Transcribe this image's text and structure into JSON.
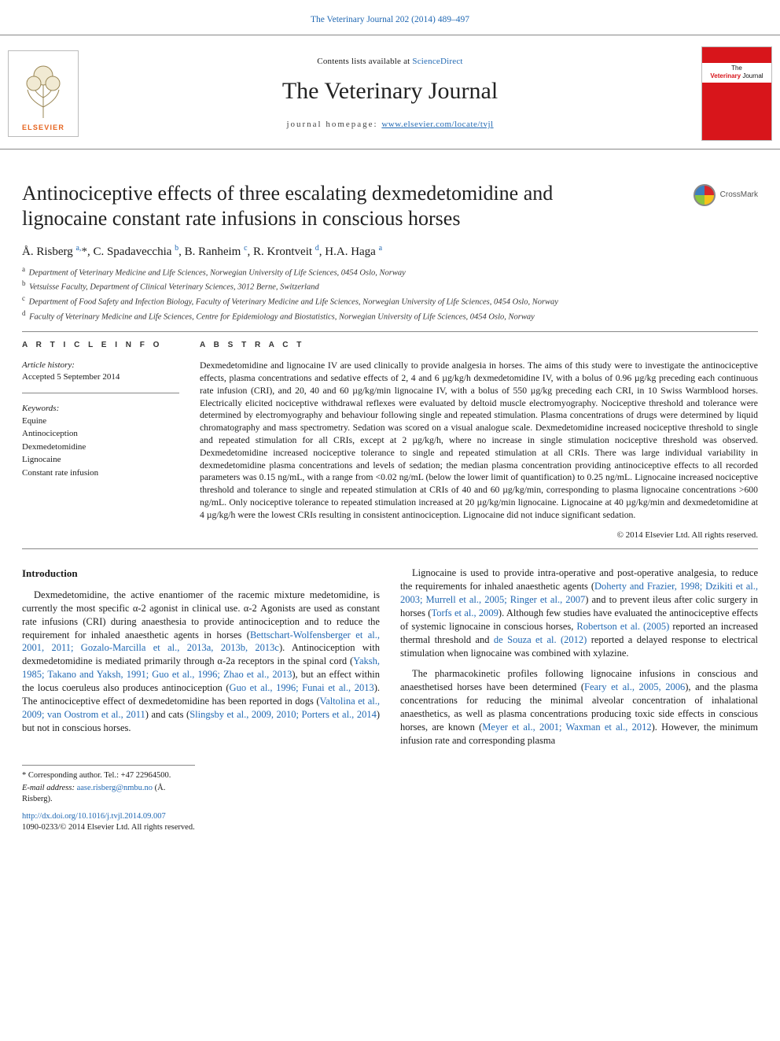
{
  "colors": {
    "link": "#2269b3",
    "text": "#1a1a1a",
    "rule": "#888888",
    "elsevier_orange": "#e6641f",
    "cover_red": "#d8151b",
    "background": "#ffffff"
  },
  "top_citation": {
    "text": "The Veterinary Journal 202 (2014) 489–497"
  },
  "masthead": {
    "contents_prefix": "Contents lists available at ",
    "contents_link": "ScienceDirect",
    "journal_title": "The Veterinary Journal",
    "homepage_prefix": "journal homepage: ",
    "homepage_link": "www.elsevier.com/locate/tvjl",
    "publisher_word": "ELSEVIER",
    "cover_text_1": "The",
    "cover_text_2": "Veterinary",
    "cover_text_3": "Journal"
  },
  "article": {
    "title": "Antinociceptive effects of three escalating dexmedetomidine and lignocaine constant rate infusions in conscious horses",
    "crossmark_label": "CrossMark",
    "authors_html": "Å. Risberg <sup>a,</sup><span class='star'>*</span>, C. Spadavecchia <sup>b</sup>, B. Ranheim <sup>c</sup>, R. Krontveit <sup>d</sup>, H.A. Haga <sup>a</sup>",
    "affiliations": {
      "a": "Department of Veterinary Medicine and Life Sciences, Norwegian University of Life Sciences, 0454 Oslo, Norway",
      "b": "Vetsuisse Faculty, Department of Clinical Veterinary Sciences, 3012 Berne, Switzerland",
      "c": "Department of Food Safety and Infection Biology, Faculty of Veterinary Medicine and Life Sciences, Norwegian University of Life Sciences, 0454 Oslo, Norway",
      "d": "Faculty of Veterinary Medicine and Life Sciences, Centre for Epidemiology and Biostatistics, Norwegian University of Life Sciences, 0454 Oslo, Norway"
    }
  },
  "article_info": {
    "heading": "A R T I C L E   I N F O",
    "history_label": "Article history:",
    "history_value": "Accepted 5 September 2014",
    "keywords_label": "Keywords:",
    "keywords": [
      "Equine",
      "Antinociception",
      "Dexmedetomidine",
      "Lignocaine",
      "Constant rate infusion"
    ]
  },
  "abstract": {
    "heading": "A B S T R A C T",
    "text": "Dexmedetomidine and lignocaine IV are used clinically to provide analgesia in horses. The aims of this study were to investigate the antinociceptive effects, plasma concentrations and sedative effects of 2, 4 and 6 µg/kg/h dexmedetomidine IV, with a bolus of 0.96 µg/kg preceding each continuous rate infusion (CRI), and 20, 40 and 60 µg/kg/min lignocaine IV, with a bolus of 550 µg/kg preceding each CRI, in 10 Swiss Warmblood horses. Electrically elicited nociceptive withdrawal reflexes were evaluated by deltoid muscle electromyography. Nociceptive threshold and tolerance were determined by electromyography and behaviour following single and repeated stimulation. Plasma concentrations of drugs were determined by liquid chromatography and mass spectrometry. Sedation was scored on a visual analogue scale. Dexmedetomidine increased nociceptive threshold to single and repeated stimulation for all CRIs, except at 2 µg/kg/h, where no increase in single stimulation nociceptive threshold was observed. Dexmedetomidine increased nociceptive tolerance to single and repeated stimulation at all CRIs. There was large individual variability in dexmedetomidine plasma concentrations and levels of sedation; the median plasma concentration providing antinociceptive effects to all recorded parameters was 0.15 ng/mL, with a range from <0.02 ng/mL (below the lower limit of quantification) to 0.25 ng/mL. Lignocaine increased nociceptive threshold and tolerance to single and repeated stimulation at CRIs of 40 and 60 µg/kg/min, corresponding to plasma lignocaine concentrations >600 ng/mL. Only nociceptive tolerance to repeated stimulation increased at 20 µg/kg/min lignocaine. Lignocaine at 40 µg/kg/min and dexmedetomidine at 4 µg/kg/h were the lowest CRIs resulting in consistent antinociception. Lignocaine did not induce significant sedation.",
    "copyright": "© 2014 Elsevier Ltd. All rights reserved."
  },
  "body": {
    "intro_heading": "Introduction",
    "p1_a": "Dexmedetomidine, the active enantiomer of the racemic mixture medetomidine, is currently the most specific α-2 agonist in clinical use. α-2 Agonists are used as constant rate infusions (CRI) during anaesthesia to provide antinociception and to reduce the requirement for inhaled anaesthetic agents in horses (",
    "p1_l1": "Bettschart-Wolfensberger et al., 2001, 2011; Gozalo-Marcilla et al., 2013a, 2013b, 2013c",
    "p1_b": "). Antinociception with dexmedetomidine is mediated primarily through α-2a receptors in the spinal cord (",
    "p1_l2": "Yaksh, 1985; Takano and Yaksh, 1991; Guo et al., 1996; Zhao et al., 2013",
    "p1_c": "), but an effect within the locus coeruleus also produces antinociception (",
    "p1_l3": "Guo et al., 1996; Funai et al., 2013",
    "p1_d": "). The antinociceptive effect of dexmedetomidine has been reported in dogs (",
    "p1_l4": "Valtolina et al., 2009;",
    "p1_l4b": "van Oostrom et al., 2011",
    "p1_e": ") and cats (",
    "p1_l5": "Slingsby et al., 2009, 2010; Porters et al., 2014",
    "p1_f": ") but not in conscious horses.",
    "p2_a": "Lignocaine is used to provide intra-operative and post-operative analgesia, to reduce the requirements for inhaled anaesthetic agents (",
    "p2_l1": "Doherty and Frazier, 1998; Dzikiti et al., 2003; Murrell et al., 2005; Ringer et al., 2007",
    "p2_b": ") and to prevent ileus after colic surgery in horses (",
    "p2_l2": "Torfs et al., 2009",
    "p2_c": "). Although few studies have evaluated the antinociceptive effects of systemic lignocaine in conscious horses, ",
    "p2_l3": "Robertson et al. (2005)",
    "p2_d": " reported an increased thermal threshold and ",
    "p2_l4": "de Souza et al. (2012)",
    "p2_e": " reported a delayed response to electrical stimulation when lignocaine was combined with xylazine.",
    "p3_a": "The pharmacokinetic profiles following lignocaine infusions in conscious and anaesthetised horses have been determined (",
    "p3_l1": "Feary et al., 2005, 2006",
    "p3_b": "), and the plasma concentrations for reducing the minimal alveolar concentration of inhalational anaesthetics, as well as plasma concentrations producing toxic side effects in conscious horses, are known (",
    "p3_l2": "Meyer et al., 2001; Waxman et al., 2012",
    "p3_c": "). However, the minimum infusion rate and corresponding plasma"
  },
  "footnotes": {
    "corr": "* Corresponding author. Tel.: +47 22964500.",
    "email_label": "E-mail address: ",
    "email": "aase.risberg@nmbu.no",
    "email_suffix": " (Å. Risberg)."
  },
  "doi": {
    "link": "http://dx.doi.org/10.1016/j.tvjl.2014.09.007",
    "issn_line": "1090-0233/© 2014 Elsevier Ltd. All rights reserved."
  }
}
